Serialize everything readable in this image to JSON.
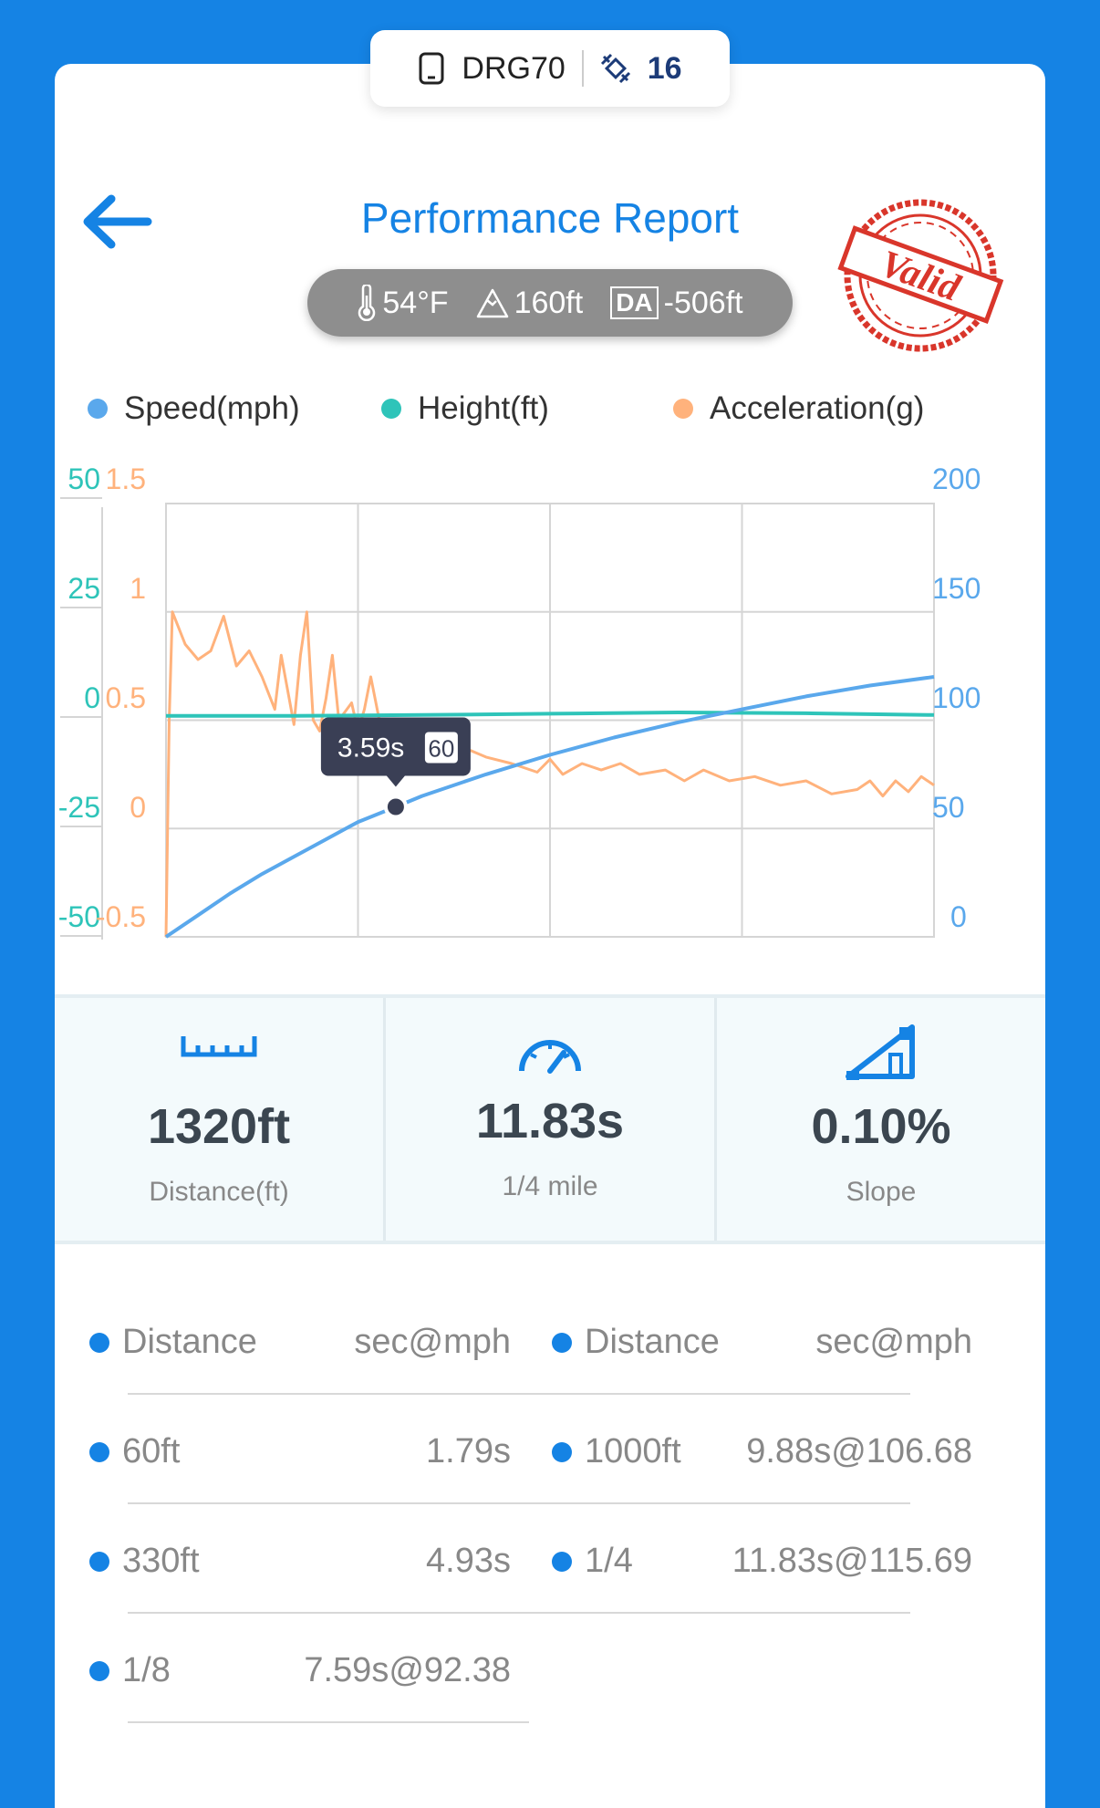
{
  "device": {
    "name": "DRG70",
    "satellites": "16"
  },
  "header": {
    "title": "Performance Report",
    "stamp_text": "Valid"
  },
  "conditions": {
    "temperature": "54°F",
    "elevation": "160ft",
    "da_label": "DA",
    "density_altitude": "-506ft"
  },
  "legend": [
    {
      "label": "Speed(mph)",
      "color": "#5aa8ec"
    },
    {
      "label": "Height(ft)",
      "color": "#2ec4b9"
    },
    {
      "label": "Acceleration(g)",
      "color": "#ffb27c"
    }
  ],
  "tooltip": {
    "time": "3.59s",
    "speed": "60"
  },
  "chart_data": {
    "type": "line",
    "left_axis_1": {
      "ticks": [
        "50",
        "25",
        "0",
        "-25",
        "-50"
      ],
      "range": [
        -50,
        50
      ],
      "color": "#2ec4b9"
    },
    "left_axis_2": {
      "ticks": [
        "1.5",
        "1",
        "0.5",
        "0",
        "-0.5"
      ],
      "range": [
        -0.5,
        1.5
      ],
      "color": "#ffb27c"
    },
    "right_axis": {
      "ticks": [
        "200",
        "150",
        "100",
        "50",
        "0"
      ],
      "range": [
        0,
        200
      ],
      "color": "#5aa8ec"
    },
    "x_range": [
      0,
      12
    ],
    "series": [
      {
        "name": "Speed(mph)",
        "axis": "right",
        "color": "#5aa8ec",
        "x": [
          0,
          0.5,
          1,
          1.5,
          2,
          2.5,
          3,
          3.59,
          4,
          5,
          6,
          7,
          8,
          9,
          10,
          11,
          12
        ],
        "y": [
          0,
          10,
          20,
          29,
          37,
          45,
          53,
          60,
          65,
          75,
          84,
          92,
          99,
          105,
          111,
          116,
          120
        ]
      },
      {
        "name": "Height(ft)",
        "axis": "left1",
        "color": "#2ec4b9",
        "x": [
          0,
          2,
          4,
          6,
          8,
          10,
          12
        ],
        "y": [
          1,
          1,
          1.2,
          1.5,
          1.8,
          1.6,
          1.2
        ]
      },
      {
        "name": "Acceleration(g)",
        "axis": "left2",
        "color": "#ffb27c",
        "x": [
          0,
          0.05,
          0.1,
          0.3,
          0.5,
          0.7,
          0.9,
          1.1,
          1.3,
          1.5,
          1.7,
          1.8,
          2.0,
          2.1,
          2.2,
          2.3,
          2.4,
          2.5,
          2.6,
          2.7,
          2.9,
          3.0,
          3.1,
          3.2,
          3.4,
          3.5,
          3.7,
          4.0,
          4.3,
          4.6,
          5.0,
          5.4,
          5.8,
          6.0,
          6.2,
          6.5,
          6.8,
          7.1,
          7.4,
          7.8,
          8.1,
          8.4,
          8.8,
          9.2,
          9.6,
          10.0,
          10.4,
          10.8,
          11.0,
          11.2,
          11.4,
          11.6,
          11.8,
          12.0
        ],
        "y": [
          -0.5,
          0.5,
          1.0,
          0.85,
          0.78,
          0.82,
          0.98,
          0.75,
          0.82,
          0.7,
          0.55,
          0.8,
          0.48,
          0.8,
          1.0,
          0.5,
          0.45,
          0.6,
          0.8,
          0.5,
          0.58,
          0.45,
          0.55,
          0.7,
          0.4,
          0.48,
          0.4,
          0.42,
          0.36,
          0.38,
          0.33,
          0.3,
          0.26,
          0.32,
          0.25,
          0.3,
          0.27,
          0.3,
          0.25,
          0.27,
          0.22,
          0.27,
          0.22,
          0.24,
          0.2,
          0.22,
          0.16,
          0.18,
          0.22,
          0.15,
          0.22,
          0.17,
          0.24,
          0.2
        ]
      }
    ]
  },
  "stats": [
    {
      "value": "1320ft",
      "label": "Distance(ft)",
      "icon": "ruler-icon"
    },
    {
      "value": "11.83s",
      "label": "1/4 mile",
      "icon": "speedometer-icon"
    },
    {
      "value": "0.10%",
      "label": "Slope",
      "icon": "slope-icon"
    }
  ],
  "splits": {
    "col_header_label": "Distance",
    "col_header_value": "sec@mph",
    "left": [
      {
        "label": "60ft",
        "value": "1.79s"
      },
      {
        "label": "330ft",
        "value": "4.93s"
      },
      {
        "label": "1/8",
        "value": "7.59s@92.38"
      }
    ],
    "right": [
      {
        "label": "1000ft",
        "value": "9.88s@106.68"
      },
      {
        "label": "1/4",
        "value": "11.83s@115.69"
      }
    ]
  }
}
